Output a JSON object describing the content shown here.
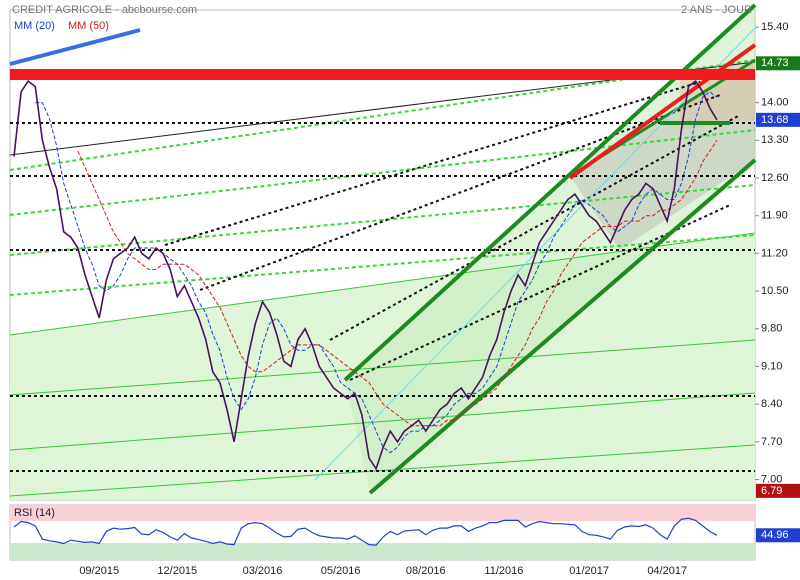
{
  "chart_data": [
    {
      "type": "line",
      "title": "CREDIT AGRICOLE - abcbourse.com",
      "subtitle": "2 ANS - JOUR",
      "categories": [
        null,
        null,
        null,
        null,
        null,
        null,
        null,
        null,
        null,
        null,
        null,
        null,
        "09/2015",
        null,
        null,
        null,
        null,
        null,
        null,
        null,
        null,
        null,
        null,
        "12/2015",
        null,
        null,
        null,
        null,
        null,
        null,
        null,
        null,
        null,
        null,
        null,
        "03/2016",
        null,
        null,
        null,
        null,
        null,
        null,
        null,
        null,
        null,
        null,
        "05/2016",
        null,
        null,
        null,
        null,
        null,
        null,
        null,
        null,
        null,
        null,
        null,
        "08/2016",
        null,
        null,
        null,
        null,
        null,
        null,
        null,
        null,
        null,
        null,
        "11/2016",
        null,
        null,
        null,
        null,
        null,
        null,
        null,
        null,
        null,
        null,
        null,
        "01/2017",
        null,
        null,
        null,
        null,
        null,
        null,
        null,
        null,
        null,
        null,
        "04/2017",
        null,
        null,
        null,
        null,
        null,
        null,
        null
      ],
      "values": [
        13.0,
        14.2,
        14.4,
        14.3,
        13.3,
        12.8,
        12.4,
        11.6,
        11.5,
        11.3,
        10.8,
        10.4,
        10.0,
        10.7,
        11.1,
        11.2,
        11.3,
        11.5,
        11.2,
        11.1,
        11.3,
        11.2,
        10.9,
        10.4,
        10.6,
        10.3,
        10.0,
        9.6,
        9.0,
        8.8,
        8.3,
        7.7,
        8.5,
        9.3,
        9.9,
        10.3,
        10.1,
        9.7,
        9.2,
        9.1,
        9.6,
        9.8,
        9.5,
        9.1,
        8.9,
        8.7,
        8.6,
        8.5,
        8.6,
        8.2,
        7.4,
        7.2,
        7.6,
        7.9,
        7.7,
        7.9,
        8.0,
        8.1,
        7.9,
        8.1,
        8.3,
        8.4,
        8.6,
        8.7,
        8.5,
        8.7,
        8.9,
        9.3,
        9.6,
        10.1,
        10.5,
        10.8,
        10.6,
        11.0,
        11.4,
        11.6,
        11.8,
        12.0,
        12.2,
        12.3,
        12.1,
        11.9,
        11.8,
        11.6,
        11.4,
        11.7,
        12.0,
        12.2,
        12.3,
        12.5,
        12.4,
        12.1,
        11.8,
        12.4,
        13.5,
        14.3,
        14.4,
        14.2,
        13.9,
        13.68
      ],
      "color": "#4b1060",
      "series": [
        {
          "name": "MM (20)",
          "color": "#1f3fd0",
          "values": [
            null,
            null,
            null,
            14.0,
            14.0,
            13.7,
            13.2,
            12.5,
            12.1,
            11.7,
            11.3,
            11.0,
            10.6,
            10.5,
            10.6,
            10.8,
            11.1,
            11.3,
            11.3,
            11.3,
            11.3,
            11.2,
            11.1,
            11.0,
            10.8,
            10.6,
            10.3,
            10.1,
            9.7,
            9.4,
            8.9,
            8.5,
            8.3,
            8.5,
            8.9,
            9.5,
            9.9,
            10.0,
            9.8,
            9.5,
            9.4,
            9.4,
            9.5,
            9.5,
            9.3,
            9.1,
            8.8,
            8.7,
            8.6,
            8.5,
            8.2,
            7.9,
            7.6,
            7.5,
            7.6,
            7.8,
            7.9,
            7.9,
            8.0,
            8.0,
            8.1,
            8.2,
            8.4,
            8.5,
            8.6,
            8.6,
            8.7,
            8.9,
            9.1,
            9.5,
            9.9,
            10.3,
            10.5,
            10.7,
            11.0,
            11.2,
            11.5,
            11.7,
            11.9,
            12.1,
            12.2,
            12.1,
            12.0,
            11.9,
            11.7,
            11.6,
            11.7,
            11.8,
            12.1,
            12.3,
            12.4,
            12.3,
            12.2,
            12.2,
            12.5,
            13.0,
            13.7,
            14.1,
            14.2,
            14.1
          ]
        },
        {
          "name": "MM (50)",
          "color": "#d01f1f",
          "values": [
            null,
            null,
            null,
            null,
            null,
            null,
            null,
            null,
            null,
            13.1,
            12.8,
            12.5,
            12.2,
            11.9,
            11.6,
            11.4,
            11.2,
            11.1,
            11.0,
            10.9,
            10.9,
            11.0,
            11.0,
            11.0,
            11.0,
            10.9,
            10.8,
            10.6,
            10.4,
            10.2,
            9.9,
            9.6,
            9.3,
            9.1,
            9.0,
            9.0,
            9.1,
            9.2,
            9.3,
            9.4,
            9.5,
            9.5,
            9.5,
            9.5,
            9.4,
            9.3,
            9.2,
            9.1,
            9.0,
            8.9,
            8.8,
            8.6,
            8.4,
            8.3,
            8.2,
            8.1,
            8.0,
            8.0,
            8.0,
            8.0,
            8.0,
            8.1,
            8.1,
            8.2,
            8.3,
            8.4,
            8.5,
            8.6,
            8.7,
            8.9,
            9.1,
            9.3,
            9.5,
            9.8,
            10.0,
            10.3,
            10.5,
            10.8,
            11.0,
            11.2,
            11.4,
            11.5,
            11.6,
            11.7,
            11.7,
            11.7,
            11.8,
            11.8,
            11.8,
            11.9,
            11.9,
            12.0,
            12.0,
            12.1,
            12.2,
            12.4,
            12.6,
            12.9,
            13.1,
            13.3
          ]
        }
      ],
      "levels": [
        14.73,
        6.79
      ],
      "level_colors": [
        "#1a7a1a",
        "#b01010"
      ],
      "ylim": [
        6.62,
        15.72
      ],
      "yticks": [
        {
          "value": 7,
          "label": "7.00"
        },
        {
          "value": 7.7,
          "label": "7.70"
        },
        {
          "value": 8.4,
          "label": "8.40"
        },
        {
          "value": 9.1,
          "label": "9.10"
        },
        {
          "value": 9.8,
          "label": "9.80"
        },
        {
          "value": 10.5,
          "label": "10.50"
        },
        {
          "value": 11.2,
          "label": "11.20"
        },
        {
          "value": 11.9,
          "label": "11.90"
        },
        {
          "value": 12.6,
          "label": "12.60"
        },
        {
          "value": 13.3,
          "label": "13.30"
        },
        {
          "value": 14,
          "label": "14.00"
        },
        {
          "value": 15.4,
          "label": "15.40"
        }
      ]
    },
    {
      "type": "line",
      "title": "RSI (14)",
      "color": "#1f3fd0",
      "ylim": [
        0,
        100
      ],
      "values": [
        60,
        70,
        68,
        62,
        38,
        35,
        33,
        30,
        36,
        34,
        32,
        33,
        30,
        52,
        58,
        56,
        57,
        59,
        47,
        46,
        55,
        50,
        42,
        36,
        48,
        40,
        37,
        34,
        30,
        33,
        29,
        28,
        58,
        66,
        68,
        66,
        58,
        49,
        42,
        43,
        56,
        58,
        50,
        44,
        42,
        40,
        40,
        38,
        44,
        36,
        28,
        27,
        42,
        52,
        46,
        53,
        54,
        55,
        46,
        54,
        58,
        58,
        62,
        62,
        52,
        58,
        62,
        68,
        68,
        72,
        72,
        72,
        60,
        66,
        70,
        68,
        66,
        66,
        65,
        64,
        52,
        46,
        45,
        42,
        38,
        54,
        60,
        62,
        61,
        64,
        58,
        46,
        38,
        62,
        74,
        76,
        72,
        62,
        52,
        44.96
      ]
    }
  ]
}
